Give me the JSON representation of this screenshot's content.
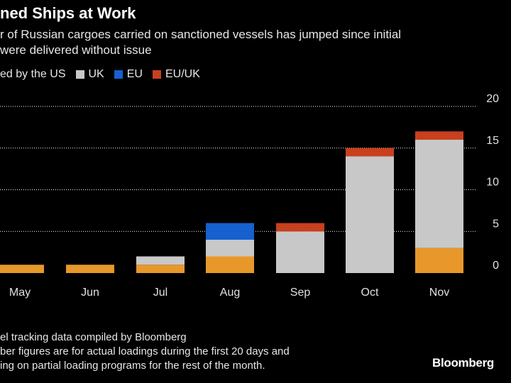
{
  "header": {
    "title": "ned Ships at Work",
    "subtitle_line1": "r of Russian cargoes carried on sanctioned vessels has jumped since initial",
    "subtitle_line2": "were delivered without issue"
  },
  "legend": [
    {
      "label": "ed by the US",
      "color": null
    },
    {
      "label": "UK",
      "color": "#c8c8c8"
    },
    {
      "label": "EU",
      "color": "#1660d0"
    },
    {
      "label": "EU/UK",
      "color": "#c8401e"
    }
  ],
  "footnote": {
    "line1": "el tracking data compiled by Bloomberg",
    "line2": "ber figures are for actual loadings during the first 20 days and",
    "line3": "ing on partial loading programs for the rest of the month."
  },
  "brand": "Bloomberg",
  "colors": {
    "background": "#000000",
    "us": "#e8982a",
    "uk": "#c8c8c8",
    "eu": "#1660d0",
    "eu_uk": "#c8401e",
    "grid": "#ffffff"
  },
  "chart_data": {
    "type": "bar",
    "stacked": true,
    "categories": [
      "May",
      "Jun",
      "Jul",
      "Aug",
      "Sep",
      "Oct",
      "Nov"
    ],
    "series": [
      {
        "name": "ed by the US",
        "color": "#e8982a",
        "values": [
          1,
          1,
          1,
          2,
          0,
          0,
          3
        ]
      },
      {
        "name": "UK",
        "color": "#c8c8c8",
        "values": [
          0,
          0,
          1,
          2,
          5,
          14,
          13
        ]
      },
      {
        "name": "EU",
        "color": "#1660d0",
        "values": [
          0,
          0,
          0,
          2,
          0,
          0,
          0
        ]
      },
      {
        "name": "EU/UK",
        "color": "#c8401e",
        "values": [
          0,
          0,
          0,
          0,
          1,
          1,
          1
        ]
      }
    ],
    "y_ticks": [
      0,
      5,
      10,
      15,
      20
    ],
    "ylim": [
      0,
      20
    ],
    "grid": true,
    "y_axis_side": "right"
  }
}
